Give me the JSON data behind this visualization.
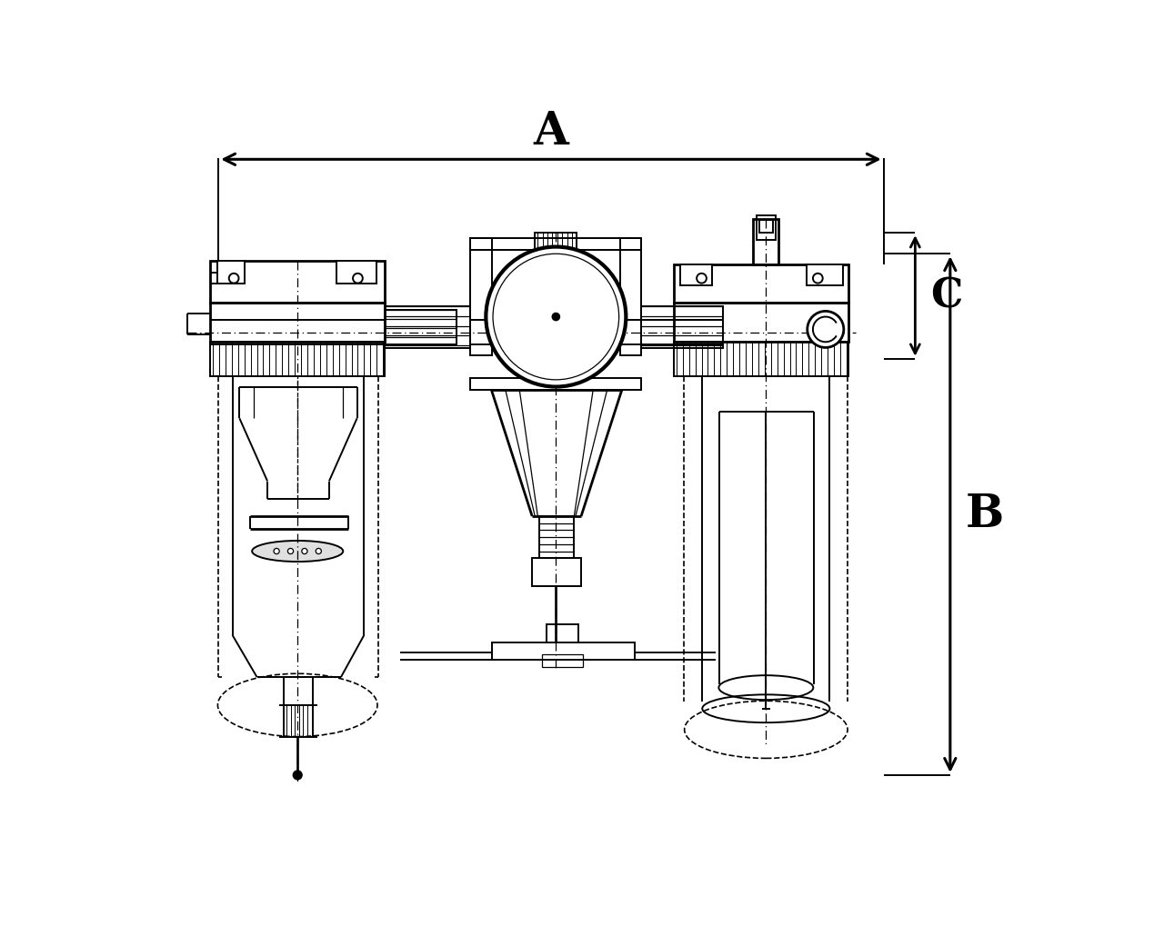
{
  "bg": "#ffffff",
  "lc": "#000000",
  "fig_w": 12.8,
  "fig_h": 10.2,
  "dpi": 100,
  "label_A": "A",
  "label_B": "B",
  "label_C": "C",
  "lw_heavy": 2.0,
  "lw_med": 1.4,
  "lw_light": 0.9,
  "lw_dash": 1.2,
  "dim_fs": 36
}
